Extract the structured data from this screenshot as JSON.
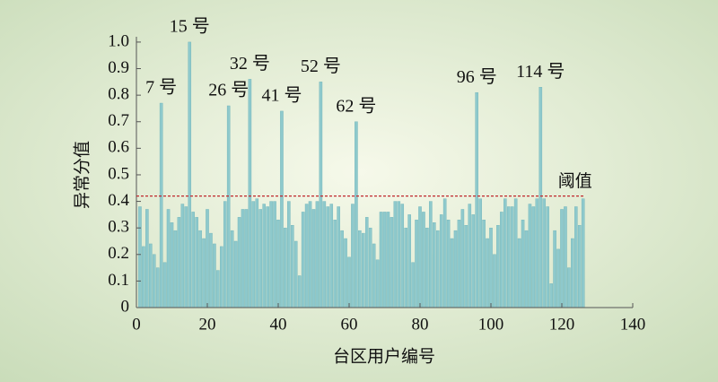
{
  "chart_data": {
    "type": "bar",
    "y_label": "异常分值",
    "x_label": "台区用户编号",
    "x": [
      1,
      2,
      3,
      4,
      5,
      6,
      7,
      8,
      9,
      10,
      11,
      12,
      13,
      14,
      15,
      16,
      17,
      18,
      19,
      20,
      21,
      22,
      23,
      24,
      25,
      26,
      27,
      28,
      29,
      30,
      31,
      32,
      33,
      34,
      35,
      36,
      37,
      38,
      39,
      40,
      41,
      42,
      43,
      44,
      45,
      46,
      47,
      48,
      49,
      50,
      51,
      52,
      53,
      54,
      55,
      56,
      57,
      58,
      59,
      60,
      61,
      62,
      63,
      64,
      65,
      66,
      67,
      68,
      69,
      70,
      71,
      72,
      73,
      74,
      75,
      76,
      77,
      78,
      79,
      80,
      81,
      82,
      83,
      84,
      85,
      86,
      87,
      88,
      89,
      90,
      91,
      92,
      93,
      94,
      95,
      96,
      97,
      98,
      99,
      100,
      101,
      102,
      103,
      104,
      105,
      106,
      107,
      108,
      109,
      110,
      111,
      112,
      113,
      114,
      115,
      116,
      117,
      118,
      119,
      120,
      121,
      122,
      123,
      124,
      125,
      126
    ],
    "series": [
      {
        "color": "#8ec9cc",
        "values": [
          0.38,
          0.23,
          0.37,
          0.24,
          0.2,
          0.15,
          0.77,
          0.17,
          0.37,
          0.32,
          0.29,
          0.34,
          0.39,
          0.38,
          1.0,
          0.36,
          0.34,
          0.29,
          0.26,
          0.37,
          0.28,
          0.24,
          0.14,
          0.23,
          0.4,
          0.76,
          0.29,
          0.25,
          0.34,
          0.37,
          0.37,
          0.86,
          0.4,
          0.41,
          0.37,
          0.39,
          0.38,
          0.4,
          0.4,
          0.33,
          0.74,
          0.3,
          0.4,
          0.31,
          0.25,
          0.12,
          0.36,
          0.39,
          0.4,
          0.37,
          0.4,
          0.85,
          0.4,
          0.38,
          0.39,
          0.33,
          0.38,
          0.29,
          0.26,
          0.19,
          0.39,
          0.7,
          0.29,
          0.28,
          0.34,
          0.3,
          0.24,
          0.18,
          0.36,
          0.36,
          0.36,
          0.34,
          0.4,
          0.4,
          0.39,
          0.3,
          0.35,
          0.17,
          0.33,
          0.38,
          0.36,
          0.3,
          0.4,
          0.32,
          0.29,
          0.35,
          0.41,
          0.33,
          0.26,
          0.29,
          0.33,
          0.37,
          0.31,
          0.39,
          0.35,
          0.81,
          0.41,
          0.33,
          0.26,
          0.3,
          0.2,
          0.31,
          0.36,
          0.41,
          0.38,
          0.38,
          0.41,
          0.26,
          0.33,
          0.29,
          0.39,
          0.38,
          0.41,
          0.83,
          0.41,
          0.38,
          0.09,
          0.29,
          0.22,
          0.37,
          0.38,
          0.15,
          0.26,
          0.38,
          0.31,
          0.41
        ]
      }
    ],
    "xlim": [
      0,
      140
    ],
    "xticks": [
      0,
      20,
      40,
      60,
      80,
      100,
      120,
      140
    ],
    "ylim": [
      0,
      1.02
    ],
    "yticks": [
      0,
      0.1,
      0.2,
      0.3,
      0.4,
      0.5,
      0.6,
      0.7,
      0.8,
      0.9,
      {
        "value": 1,
        "label": "1.0"
      }
    ],
    "threshold": {
      "value": 0.42,
      "label": "阈值",
      "color": "#c0282d"
    },
    "annotations": [
      {
        "text": "7 号",
        "x": 7
      },
      {
        "text": "15 号",
        "x": 15
      },
      {
        "text": "26 号",
        "x": 26
      },
      {
        "text": "32 号",
        "x": 32
      },
      {
        "text": "41 号",
        "x": 41
      },
      {
        "text": "52 号",
        "x": 52
      },
      {
        "text": "62 号",
        "x": 62
      },
      {
        "text": "96 号",
        "x": 96
      },
      {
        "text": "114 号",
        "x": 114
      }
    ]
  }
}
